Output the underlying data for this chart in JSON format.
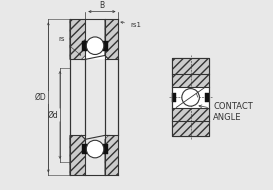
{
  "bg_color": "#ffffff",
  "line_color": "#333333",
  "fig_bg": "#e8e8e8",
  "contact_angle_text_1": "CONTACT",
  "contact_angle_text_2": "ANGLE",
  "dim_B": "B",
  "dim_rs1": "rs1",
  "dim_rs": "rs",
  "dim_D": "ØD",
  "dim_d": "Ød",
  "hatch": "////",
  "lw_main": 0.8,
  "lw_dim": 0.5,
  "lw_hatch": 0.4,
  "fontsize_dim": 5.5,
  "fontsize_label": 5.5
}
